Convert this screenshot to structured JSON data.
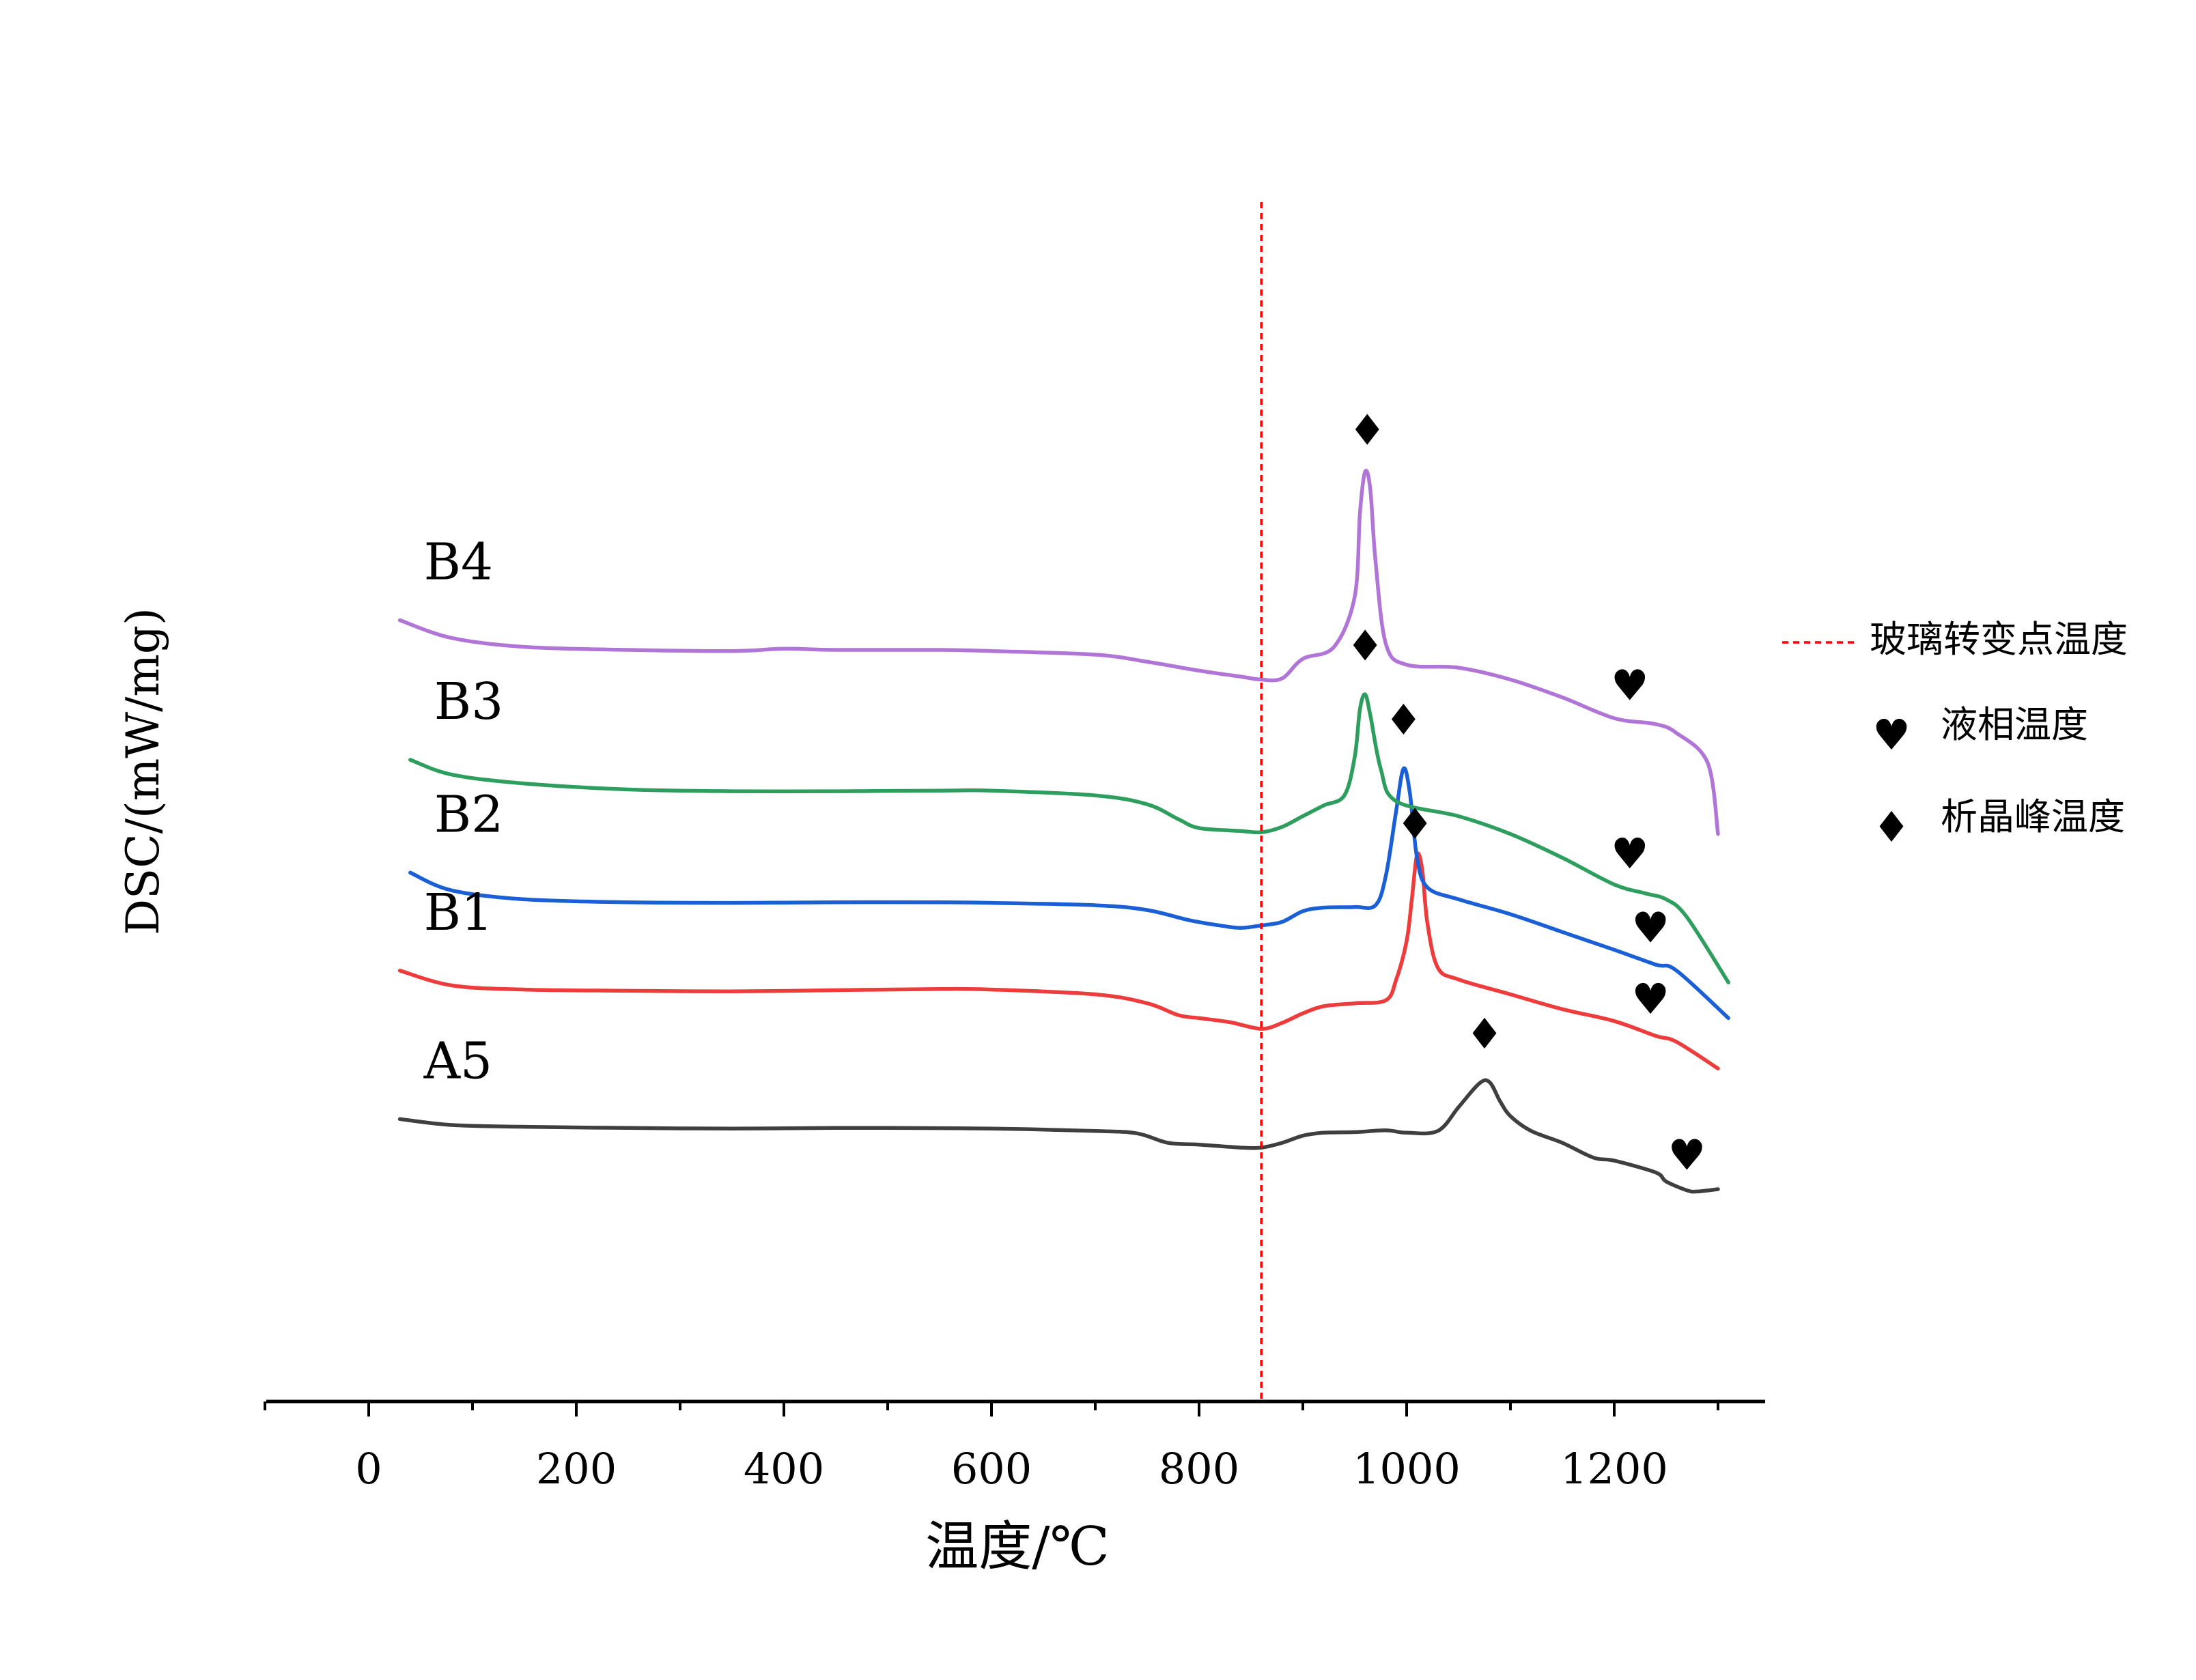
{
  "chart_data": {
    "type": "line",
    "title": "",
    "xlabel": "温度/℃",
    "ylabel": "DSC/(mW/mg)",
    "xlim": [
      -100,
      1350
    ],
    "xticks": [
      0,
      200,
      400,
      600,
      800,
      1000,
      1200
    ],
    "xtick_labels": [
      "0",
      "200",
      "400",
      "600",
      "800",
      "1000",
      "1200"
    ],
    "y_ticks_shown": false,
    "glass_transition_line": {
      "x": 860,
      "color": "#ff0000",
      "label": "玻璃转变点温度"
    },
    "legend": {
      "position": "right",
      "entries": [
        {
          "label": "玻璃转变点温度",
          "symbol": "dashed-line"
        },
        {
          "label": "液相温度",
          "symbol": "♥"
        },
        {
          "label": "析晶峰温度",
          "symbol": "♦"
        }
      ]
    },
    "series": [
      {
        "name": "A5",
        "color": "#3f3f3f",
        "offset": 0,
        "x": [
          30,
          80,
          150,
          250,
          350,
          450,
          500,
          600,
          700,
          740,
          770,
          800,
          840,
          860,
          880,
          900,
          920,
          950,
          980,
          1000,
          1030,
          1050,
          1070,
          1080,
          1090,
          1100,
          1120,
          1150,
          1180,
          1200,
          1240,
          1250,
          1270,
          1280,
          1300
        ],
        "values": [
          1.1,
          1.0,
          0.97,
          0.95,
          0.94,
          0.95,
          0.95,
          0.94,
          0.9,
          0.86,
          0.7,
          0.67,
          0.62,
          0.62,
          0.7,
          0.82,
          0.87,
          0.88,
          0.91,
          0.87,
          0.9,
          1.3,
          1.7,
          1.72,
          1.4,
          1.15,
          0.9,
          0.7,
          0.45,
          0.4,
          0.2,
          0.05,
          -0.1,
          -0.12,
          -0.08
        ]
      },
      {
        "name": "B1",
        "color": "#ee3b3b",
        "offset": 2.0,
        "x": [
          30,
          80,
          150,
          250,
          350,
          450,
          550,
          600,
          700,
          750,
          780,
          800,
          830,
          860,
          880,
          900,
          920,
          950,
          980,
          990,
          1000,
          1005,
          1010,
          1015,
          1020,
          1030,
          1050,
          1100,
          1150,
          1200,
          1240,
          1260,
          1300
        ],
        "values": [
          1.6,
          1.35,
          1.28,
          1.26,
          1.25,
          1.27,
          1.29,
          1.28,
          1.2,
          1.05,
          0.85,
          0.8,
          0.73,
          0.62,
          0.72,
          0.88,
          1.0,
          1.05,
          1.1,
          1.45,
          2.1,
          2.8,
          3.55,
          3.3,
          2.4,
          1.65,
          1.45,
          1.2,
          0.95,
          0.75,
          0.5,
          0.4,
          -0.05
        ]
      },
      {
        "name": "B2",
        "color": "#1a5fd6",
        "offset": 3.7,
        "x": [
          40,
          80,
          150,
          250,
          350,
          450,
          550,
          600,
          700,
          750,
          790,
          820,
          840,
          860,
          880,
          900,
          920,
          950,
          970,
          980,
          990,
          997,
          1003,
          1010,
          1020,
          1050,
          1100,
          1150,
          1200,
          1240,
          1260,
          1310
        ],
        "values": [
          1.55,
          1.25,
          1.1,
          1.05,
          1.04,
          1.05,
          1.05,
          1.04,
          1.0,
          0.92,
          0.75,
          0.66,
          0.62,
          0.66,
          0.72,
          0.9,
          0.96,
          0.97,
          1.0,
          1.5,
          2.6,
          3.3,
          2.9,
          1.8,
          1.3,
          1.1,
          0.85,
          0.55,
          0.25,
          0.0,
          -0.1,
          -0.9
        ]
      },
      {
        "name": "B3",
        "color": "#2e9e5e",
        "offset": 5.6,
        "x": [
          40,
          80,
          150,
          250,
          350,
          450,
          550,
          600,
          700,
          750,
          780,
          800,
          840,
          860,
          880,
          900,
          920,
          940,
          950,
          955,
          960,
          965,
          975,
          990,
          1050,
          1100,
          1150,
          1200,
          1230,
          1250,
          1270,
          1310
        ],
        "values": [
          1.55,
          1.3,
          1.15,
          1.05,
          1.02,
          1.02,
          1.03,
          1.03,
          0.95,
          0.8,
          0.55,
          0.4,
          0.35,
          0.33,
          0.42,
          0.6,
          0.78,
          0.95,
          1.6,
          2.4,
          2.65,
          2.3,
          1.4,
          0.85,
          0.6,
          0.3,
          -0.1,
          -0.55,
          -0.7,
          -0.8,
          -1.1,
          -2.2
        ]
      },
      {
        "name": "B4",
        "color": "#b075d6",
        "offset": 7.5,
        "x": [
          30,
          80,
          150,
          250,
          350,
          400,
          450,
          550,
          600,
          700,
          750,
          800,
          840,
          860,
          880,
          900,
          930,
          950,
          955,
          960,
          965,
          970,
          980,
          1000,
          1050,
          1100,
          1150,
          1200,
          1240,
          1260,
          1290,
          1300
        ],
        "values": [
          2.0,
          1.7,
          1.55,
          1.5,
          1.48,
          1.52,
          1.5,
          1.5,
          1.48,
          1.42,
          1.3,
          1.15,
          1.05,
          1.0,
          1.02,
          1.35,
          1.55,
          2.4,
          3.8,
          4.5,
          4.2,
          3.0,
          1.6,
          1.25,
          1.2,
          1.0,
          0.7,
          0.35,
          0.25,
          0.1,
          -0.4,
          -1.6
        ]
      }
    ],
    "series_labels": [
      {
        "name": "A5",
        "text": "A5"
      },
      {
        "name": "B1",
        "text": "B1"
      },
      {
        "name": "B2",
        "text": "B2"
      },
      {
        "name": "B3",
        "text": "B3"
      },
      {
        "name": "B4",
        "text": "B4"
      }
    ],
    "crystallization_peaks": [
      {
        "series": "A5",
        "x": 1075,
        "symbol": "♦"
      },
      {
        "series": "B1",
        "x": 1008,
        "symbol": "♦"
      },
      {
        "series": "B2",
        "x": 997,
        "symbol": "♦"
      },
      {
        "series": "B3",
        "x": 960,
        "symbol": "♦"
      },
      {
        "series": "B4",
        "x": 962,
        "symbol": "♦"
      }
    ],
    "liquidus_points": [
      {
        "series": "A5",
        "x": 1270,
        "symbol": "♥"
      },
      {
        "series": "B1",
        "x": 1235,
        "symbol": "♥"
      },
      {
        "series": "B2",
        "x": 1235,
        "symbol": "♥"
      },
      {
        "series": "B3",
        "x": 1215,
        "symbol": "♥"
      },
      {
        "series": "B4",
        "x": 1215,
        "symbol": "♥"
      }
    ]
  }
}
